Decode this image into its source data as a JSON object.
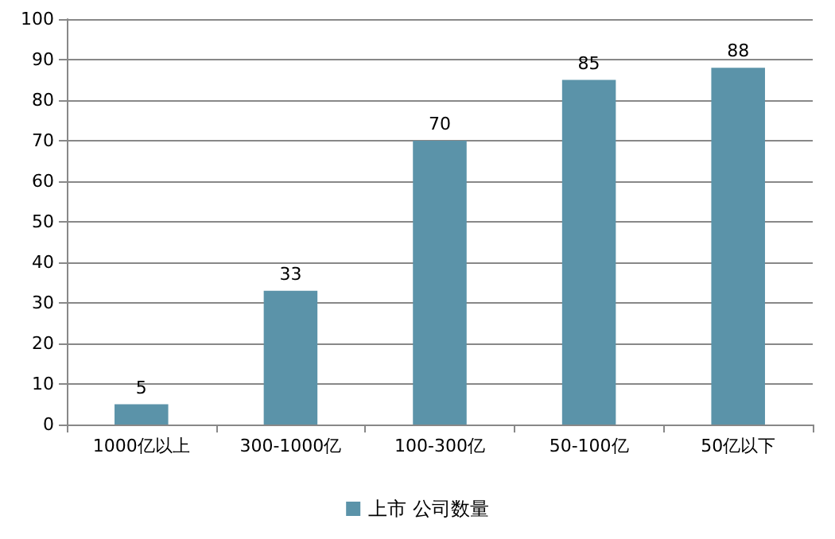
{
  "chart_data": {
    "type": "bar",
    "categories": [
      "1000亿以上",
      "300-1000亿",
      "100-300亿",
      "50-100亿",
      "50亿以下"
    ],
    "series": [
      {
        "name": "上市 公司数量",
        "color": "#5b93a9",
        "values": [
          5,
          33,
          70,
          85,
          88
        ]
      }
    ],
    "ylim": [
      0,
      100
    ],
    "yticks": [
      0,
      10,
      20,
      30,
      40,
      50,
      60,
      70,
      80,
      90,
      100
    ],
    "grid": "y",
    "legend": "bottom",
    "data_labels": true
  }
}
